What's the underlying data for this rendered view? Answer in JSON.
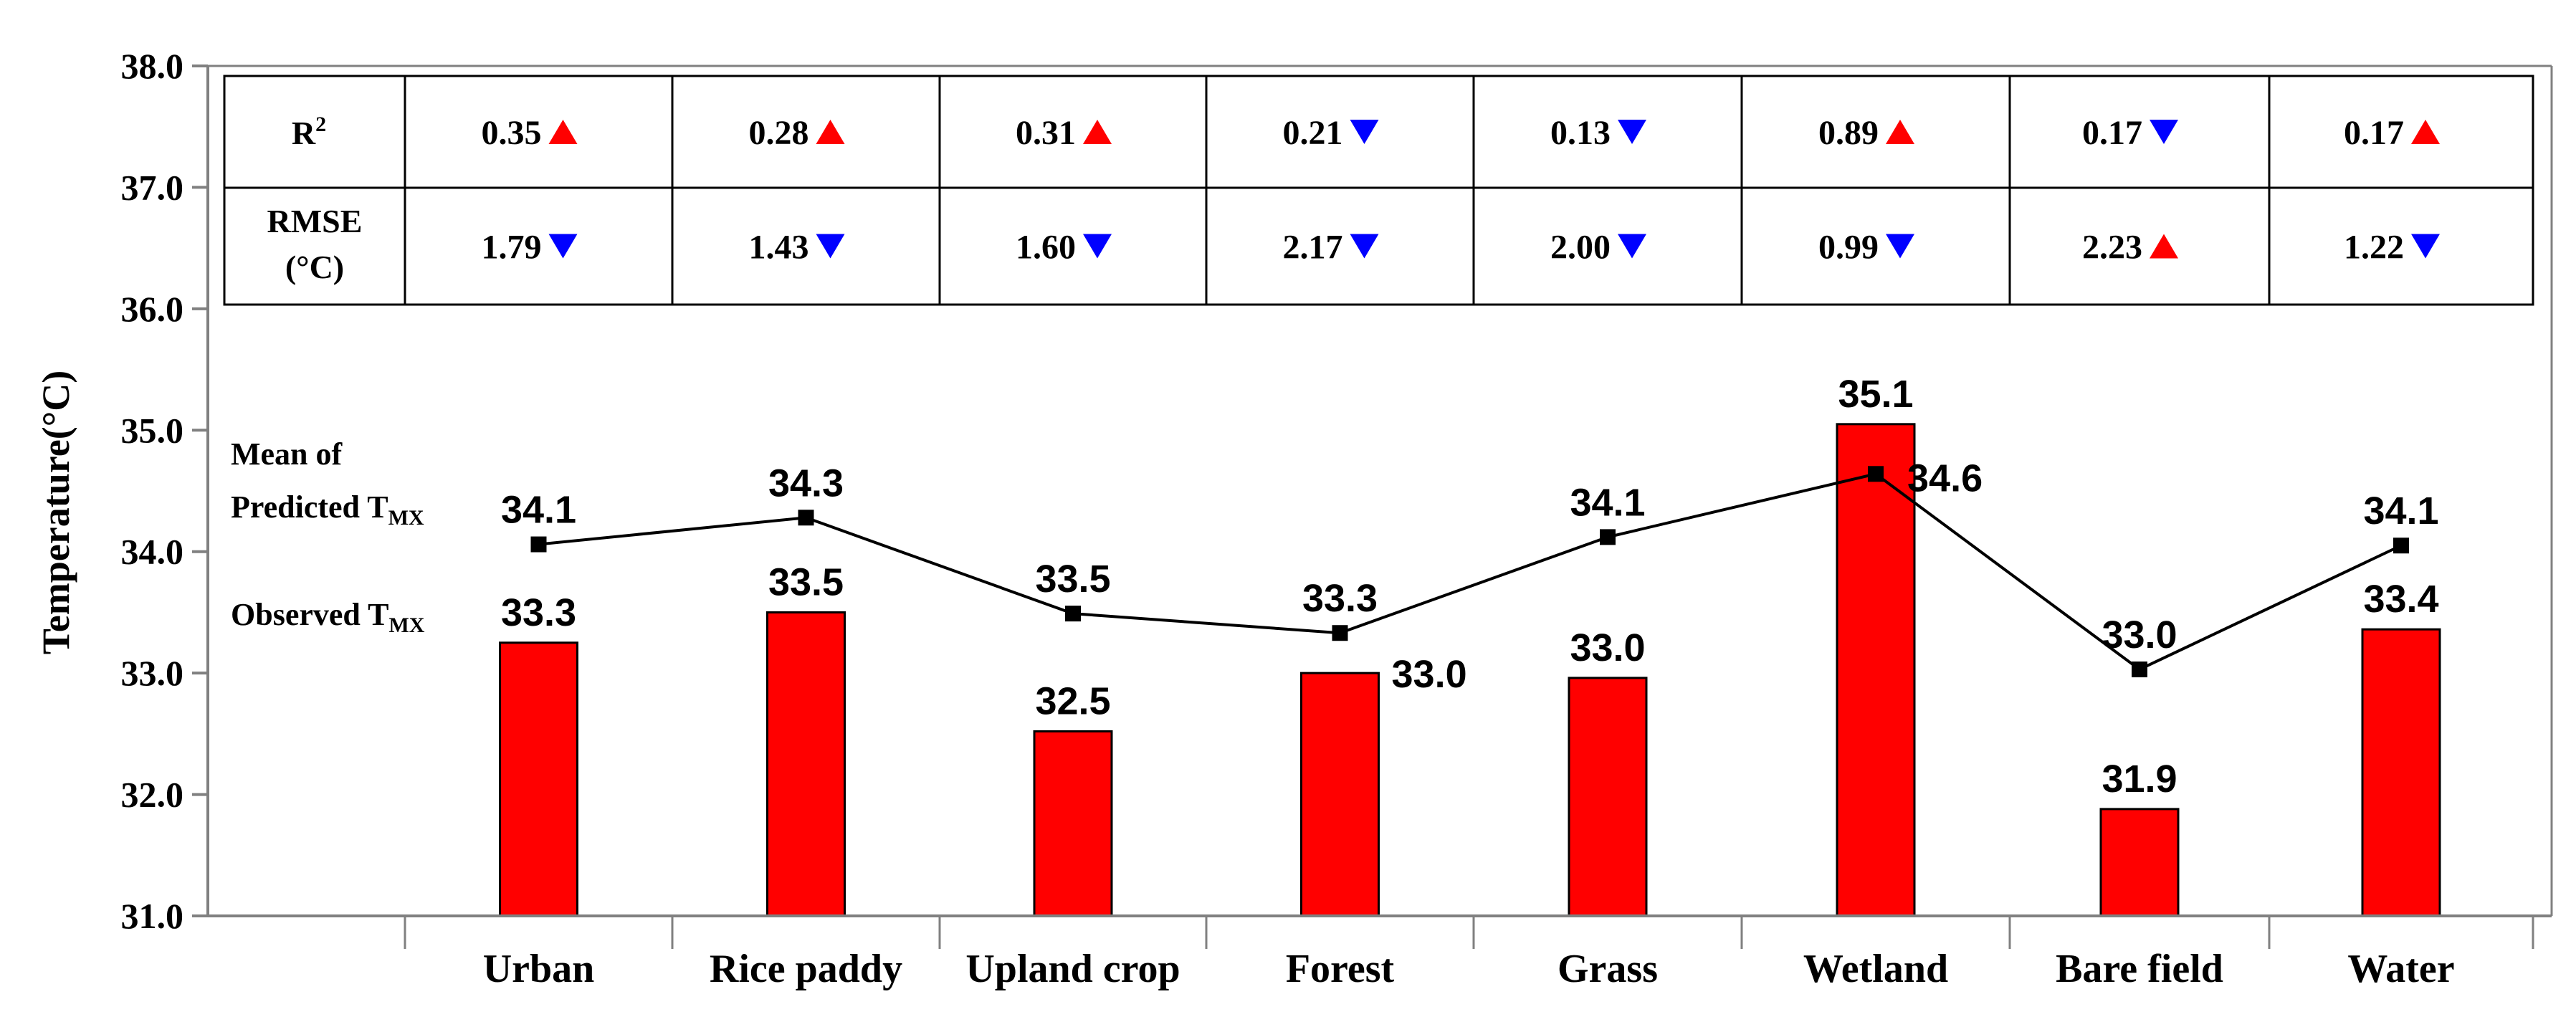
{
  "chart_data": {
    "type": "bar",
    "title": "",
    "xlabel": "",
    "ylabel": "Temperature(°C)",
    "ylim": [
      31.0,
      38.0
    ],
    "yticks": [
      "31.0",
      "32.0",
      "33.0",
      "34.0",
      "35.0",
      "36.0",
      "37.0",
      "38.0"
    ],
    "categories": [
      "Urban",
      "Rice paddy",
      "Upland crop",
      "Forest",
      "Grass",
      "Wetland",
      "Bare field",
      "Water"
    ],
    "series": [
      {
        "name": "Observed T_MX",
        "kind": "bar",
        "color": "#ff0000",
        "values": [
          33.25,
          33.5,
          32.52,
          33.0,
          32.96,
          35.05,
          31.88,
          33.36
        ],
        "labels": [
          "33.3",
          "33.5",
          "32.5",
          "33.0",
          "33.0",
          "35.1",
          "31.9",
          "33.4"
        ]
      },
      {
        "name": "Mean of Predicted T_MX",
        "kind": "line",
        "color": "#000000",
        "values": [
          34.06,
          34.28,
          33.49,
          33.33,
          34.12,
          34.64,
          33.03,
          34.05
        ],
        "labels": [
          "34.1",
          "34.3",
          "33.5",
          "33.3",
          "34.1",
          "34.6",
          "33.0",
          "34.1"
        ]
      }
    ],
    "legend": {
      "predicted_line1": "Mean of",
      "predicted_line2": "Predicted T",
      "predicted_sub": "MX",
      "observed": "Observed T",
      "observed_sub": "MX"
    },
    "table": {
      "row_labels": [
        {
          "text": "R",
          "sup": "2",
          "line2": ""
        },
        {
          "text": "RMSE",
          "sup": "",
          "line2": "(°C)"
        }
      ],
      "r2": [
        {
          "value": "0.35",
          "dir": "up"
        },
        {
          "value": "0.28",
          "dir": "up"
        },
        {
          "value": "0.31",
          "dir": "up"
        },
        {
          "value": "0.21",
          "dir": "down"
        },
        {
          "value": "0.13",
          "dir": "down"
        },
        {
          "value": "0.89",
          "dir": "up"
        },
        {
          "value": "0.17",
          "dir": "down"
        },
        {
          "value": "0.17",
          "dir": "up"
        }
      ],
      "rmse": [
        {
          "value": "1.79",
          "dir": "down"
        },
        {
          "value": "1.43",
          "dir": "down"
        },
        {
          "value": "1.60",
          "dir": "down"
        },
        {
          "value": "2.17",
          "dir": "down"
        },
        {
          "value": "2.00",
          "dir": "down"
        },
        {
          "value": "0.99",
          "dir": "down"
        },
        {
          "value": "2.23",
          "dir": "up"
        },
        {
          "value": "1.22",
          "dir": "down"
        }
      ],
      "up_color": "#ff0000",
      "down_color": "#0000ff"
    }
  }
}
